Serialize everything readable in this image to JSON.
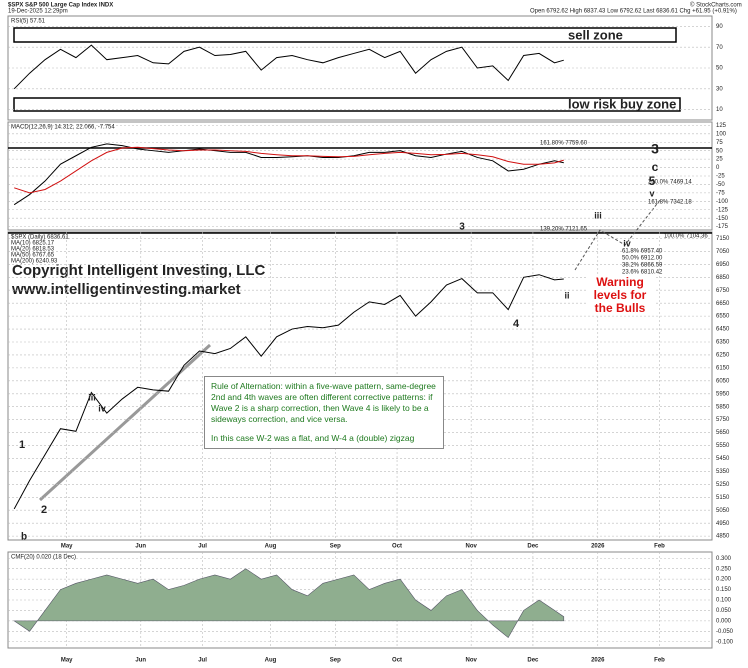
{
  "header": {
    "symbol": "$SPX S&P 500 Large Cap Index INDX",
    "date": "19-Dec-2025 12:29pm",
    "quote": "Open 6792.62 High 6837.43 Low 6792.62 Last 6836.61 Chg +61.95 (+0.91%)",
    "source": "© StockCharts.com"
  },
  "annotations": {
    "sell": "sell zone",
    "buy": "low risk buy zone",
    "copyright": "Copyright Intelligent Investing, LLC",
    "site": "www.intelligentinvesting.market",
    "rule": "Rule of Alternation: within a five-wave pattern, same-degree 2nd and 4th waves are often different corrective patterns: if Wave 2 is a sharp correction, then Wave 4 is likely to be a sideways correction, and vice versa.",
    "case": "In this case W-2 was a flat, and W-4 a (double) zigzag",
    "warning": "Warning levels for the Bulls"
  },
  "fib_labels": [
    "161.80% 7759.60",
    "139.20% 7121.65",
    "200.0% 7469.14",
    "161.8% 7342.18",
    "100.0% 7104.36",
    "61.8% 6957.40",
    "50.0% 6912.00",
    "38.2% 6866.59",
    "23.6% 6810.42"
  ],
  "wave_labels": [
    {
      "text": "3",
      "color": "#000000"
    },
    {
      "text": "c",
      "color": "#d11111"
    },
    {
      "text": "5",
      "color": "#22a022"
    },
    {
      "text": "v",
      "color": "#000000"
    },
    {
      "text": "iii",
      "color": "#000000"
    },
    {
      "text": "iv",
      "color": "#000000"
    },
    {
      "text": "3",
      "color": "#22a022"
    },
    {
      "text": "4",
      "color": "#22a022"
    },
    {
      "text": "1",
      "color": "#22a022"
    },
    {
      "text": "2",
      "color": "#22a022"
    },
    {
      "text": "b",
      "color": "#d11111"
    },
    {
      "text": "iii",
      "color": "#1a1aa0"
    },
    {
      "text": "iv",
      "color": "#1a1aa0"
    },
    {
      "text": "ii",
      "color": "#000000"
    }
  ],
  "chart_data": [
    {
      "type": "line",
      "title": "RSI(5) 57.51",
      "x": [
        0,
        5,
        10,
        15,
        20,
        25,
        30,
        35,
        40,
        45,
        50,
        55,
        60,
        65,
        70,
        75,
        80,
        85,
        90,
        95,
        100,
        105,
        110,
        115,
        120,
        125,
        130,
        135,
        140,
        145,
        150,
        155,
        160,
        165,
        170,
        175,
        178
      ],
      "series": [
        {
          "name": "RSI",
          "color": "#000000",
          "values": [
            30,
            45,
            58,
            68,
            60,
            72,
            58,
            60,
            62,
            55,
            54,
            66,
            70,
            62,
            63,
            66,
            48,
            60,
            62,
            58,
            55,
            60,
            64,
            68,
            60,
            66,
            45,
            58,
            66,
            70,
            50,
            52,
            38,
            62,
            64,
            55,
            57.51
          ]
        }
      ],
      "xlim": [
        -2,
        226
      ],
      "ylim": [
        0,
        100
      ],
      "yticks": [
        10,
        30,
        50,
        70,
        90
      ],
      "grid": true
    },
    {
      "type": "line",
      "title": "MACD(12,26,9) 14.312, 22.066, -7.754",
      "x": [
        0,
        5,
        10,
        15,
        20,
        25,
        30,
        35,
        40,
        45,
        50,
        55,
        60,
        65,
        70,
        75,
        80,
        85,
        90,
        95,
        100,
        105,
        110,
        115,
        120,
        125,
        130,
        135,
        140,
        145,
        150,
        155,
        160,
        165,
        170,
        175,
        178
      ],
      "series": [
        {
          "name": "MACD",
          "color": "#000000",
          "values": [
            -110,
            -80,
            -40,
            10,
            35,
            60,
            70,
            65,
            55,
            50,
            45,
            50,
            55,
            50,
            45,
            45,
            30,
            30,
            32,
            35,
            30,
            30,
            35,
            45,
            45,
            50,
            35,
            30,
            40,
            48,
            30,
            20,
            -10,
            -5,
            10,
            20,
            14.312
          ]
        },
        {
          "name": "Signal",
          "color": "#d11111",
          "values": [
            -60,
            -75,
            -65,
            -40,
            -10,
            20,
            45,
            58,
            60,
            56,
            52,
            50,
            52,
            52,
            50,
            48,
            42,
            38,
            35,
            35,
            33,
            32,
            33,
            38,
            42,
            45,
            42,
            38,
            39,
            42,
            38,
            32,
            18,
            10,
            10,
            14,
            22.066
          ]
        }
      ],
      "xlim": [
        -2,
        226
      ],
      "ylim": [
        -185,
        135
      ],
      "yticks": [
        125,
        100,
        75,
        50,
        25,
        0,
        -25,
        -50,
        -75,
        -100,
        -125,
        -150,
        -175
      ],
      "grid": true
    },
    {
      "type": "line",
      "title": "$SPX (Daily) 6836.61",
      "ma_labels": [
        "MA(10) 6825.17",
        "MA(20) 6818.53",
        "MA(50) 6767.65",
        "MA(200) 6240.93"
      ],
      "x": [
        0,
        5,
        10,
        15,
        20,
        25,
        30,
        35,
        40,
        45,
        50,
        55,
        60,
        65,
        70,
        75,
        80,
        85,
        90,
        95,
        100,
        105,
        110,
        115,
        120,
        125,
        130,
        135,
        140,
        145,
        150,
        155,
        160,
        165,
        170,
        175,
        178
      ],
      "series": [
        {
          "name": "$SPX",
          "color": "#000000",
          "values": [
            5060,
            5280,
            5480,
            5680,
            5660,
            5960,
            5800,
            5910,
            6000,
            5980,
            5970,
            6170,
            6280,
            6260,
            6300,
            6390,
            6240,
            6390,
            6450,
            6470,
            6460,
            6480,
            6580,
            6660,
            6640,
            6710,
            6550,
            6660,
            6790,
            6840,
            6730,
            6730,
            6600,
            6850,
            6870,
            6830,
            6836.61
          ]
        }
      ],
      "xlim": [
        -2,
        226
      ],
      "ylim": [
        4820,
        7200
      ],
      "yticks": [
        4850,
        4950,
        5050,
        5150,
        5250,
        5350,
        5450,
        5550,
        5650,
        5750,
        5850,
        5950,
        6050,
        6150,
        6250,
        6350,
        6450,
        6550,
        6650,
        6750,
        6850,
        6950,
        7050,
        7150
      ],
      "xticks": [
        {
          "value": 17,
          "label": "May"
        },
        {
          "value": 41,
          "label": "Jun"
        },
        {
          "value": 61,
          "label": "Jul"
        },
        {
          "value": 83,
          "label": "Aug"
        },
        {
          "value": 104,
          "label": "Sep"
        },
        {
          "value": 124,
          "label": "Oct"
        },
        {
          "value": 148,
          "label": "Nov"
        },
        {
          "value": 168,
          "label": "Dec"
        },
        {
          "value": 189,
          "label": "2026"
        },
        {
          "value": 209,
          "label": "Feb"
        }
      ],
      "grid": true
    },
    {
      "type": "area",
      "title": "CMF(20) 0.020 (18 Dec)",
      "x": [
        0,
        5,
        10,
        15,
        20,
        25,
        30,
        35,
        40,
        45,
        50,
        55,
        60,
        65,
        70,
        75,
        80,
        85,
        90,
        95,
        100,
        105,
        110,
        115,
        120,
        125,
        130,
        135,
        140,
        145,
        150,
        155,
        160,
        165,
        170,
        175,
        178
      ],
      "series": [
        {
          "name": "CMF",
          "color": "#8fae8f",
          "values": [
            0.0,
            -0.05,
            0.05,
            0.15,
            0.18,
            0.2,
            0.22,
            0.2,
            0.18,
            0.2,
            0.15,
            0.17,
            0.2,
            0.22,
            0.2,
            0.25,
            0.2,
            0.22,
            0.15,
            0.12,
            0.18,
            0.2,
            0.22,
            0.15,
            0.18,
            0.2,
            0.1,
            0.05,
            0.12,
            0.15,
            0.05,
            -0.02,
            -0.08,
            0.05,
            0.1,
            0.05,
            0.02
          ]
        }
      ],
      "xlim": [
        -2,
        226
      ],
      "ylim": [
        -0.13,
        0.33
      ],
      "yticks": [
        {
          "value": 0.3,
          "label": "0.300"
        },
        {
          "value": 0.25,
          "label": "0.250"
        },
        {
          "value": 0.2,
          "label": "0.200"
        },
        {
          "value": 0.15,
          "label": "0.150"
        },
        {
          "value": 0.1,
          "label": "0.100"
        },
        {
          "value": 0.05,
          "label": "0.050"
        },
        {
          "value": 0,
          "label": "0.000"
        },
        {
          "value": -0.05,
          "label": "-0.050"
        },
        {
          "value": -0.1,
          "label": "-0.100"
        }
      ],
      "xticks": [
        {
          "value": 17,
          "label": "May"
        },
        {
          "value": 41,
          "label": "Jun"
        },
        {
          "value": 61,
          "label": "Jul"
        },
        {
          "value": 83,
          "label": "Aug"
        },
        {
          "value": 104,
          "label": "Sep"
        },
        {
          "value": 124,
          "label": "Oct"
        },
        {
          "value": 148,
          "label": "Nov"
        },
        {
          "value": 168,
          "label": "Dec"
        },
        {
          "value": 189,
          "label": "2026"
        },
        {
          "value": 209,
          "label": "Feb"
        }
      ],
      "grid": true
    }
  ]
}
